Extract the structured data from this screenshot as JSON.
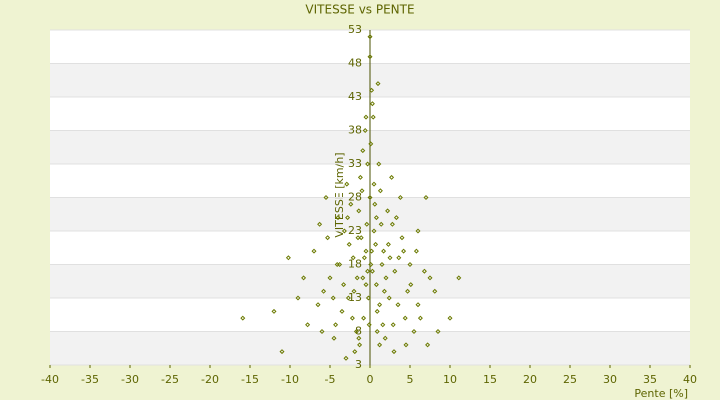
{
  "chart_data": {
    "type": "scatter",
    "title": "VITESSE vs PENTE",
    "x_label": "Pente [%]",
    "y_label": "VITESSE [km/h]",
    "color": "#6b7a00",
    "xlim": [
      -40,
      40
    ],
    "ylim": [
      3,
      53
    ],
    "xticks": [
      -40,
      -35,
      -30,
      -25,
      -20,
      -15,
      -10,
      -5,
      0,
      5,
      10,
      15,
      20,
      25,
      30,
      35,
      40
    ],
    "yticks": [
      3,
      8,
      13,
      18,
      23,
      28,
      33,
      38,
      43,
      48,
      53
    ],
    "grid": true,
    "x": [
      0.2,
      -1.1,
      1.5,
      -0.5,
      0.8,
      2.3,
      -2.1,
      0.0,
      1.2,
      -0.8,
      3.1,
      -3.2,
      0.5,
      -0.3,
      1.8,
      -1.6,
      2.9,
      -2.7,
      0.1,
      -0.6,
      4.2,
      -4.1,
      0.9,
      -1.3,
      5.1,
      -5.3,
      2.2,
      -2.4,
      0.4,
      0.2,
      6.3,
      -6.5,
      7.2,
      -7.8,
      8.1,
      -8.3,
      10.0,
      11.1,
      -10.2,
      -11.0,
      -15.9,
      -12.0,
      3.8,
      7.0,
      -5.5,
      5.5,
      4.5,
      -4.5,
      6.0,
      -6.3,
      1.0,
      -0.9,
      2.7,
      -2.9,
      3.5,
      -3.5,
      1.4,
      -1.4,
      0.7,
      -0.7,
      2.0,
      -2.0,
      0.3,
      -0.2,
      1.6,
      -1.7,
      4.0,
      -4.0,
      3.0,
      -3.0,
      0.6,
      -0.4,
      2.5,
      -2.6,
      1.1,
      -1.2,
      0.0,
      0.0,
      5.0,
      -5.0,
      6.8,
      -7.0,
      8.5,
      -9.0,
      3.3,
      -3.3,
      1.9,
      -1.9,
      0.9,
      -0.1,
      2.4,
      -2.2,
      1.3,
      -1.0,
      4.7,
      -4.6,
      0.5,
      -0.5,
      0.1,
      -0.3,
      1.7,
      -1.5,
      3.6,
      -3.8,
      6.0,
      -6.0,
      7.5,
      2.8,
      -2.8,
      0.8,
      -0.9,
      1.2,
      -1.4,
      4.4,
      -4.3,
      5.8,
      -5.8,
      0.3,
      -0.5
    ],
    "values": [
      20,
      22,
      18,
      15,
      25,
      21,
      19,
      28,
      12,
      10,
      17,
      23,
      30,
      33,
      14,
      16,
      9,
      13,
      36,
      38,
      20,
      18,
      8,
      6,
      15,
      22,
      26,
      27,
      40,
      44,
      10,
      12,
      6,
      9,
      14,
      16,
      10,
      16,
      19,
      5,
      10,
      11,
      28,
      28,
      28,
      8,
      6,
      7,
      23,
      24,
      45,
      35,
      31,
      30,
      12,
      11,
      24,
      26,
      21,
      19,
      16,
      14,
      17,
      13,
      9,
      8,
      22,
      25,
      5,
      4,
      27,
      24,
      19,
      21,
      33,
      31,
      49,
      52,
      18,
      16,
      17,
      20,
      8,
      13,
      25,
      15,
      7,
      5,
      11,
      9,
      13,
      10,
      29,
      29,
      14,
      13,
      23,
      20,
      18,
      17,
      20,
      22,
      19,
      18,
      12,
      8,
      16,
      24,
      25,
      15,
      16,
      6,
      7,
      10,
      9,
      20,
      14,
      42,
      40
    ]
  }
}
